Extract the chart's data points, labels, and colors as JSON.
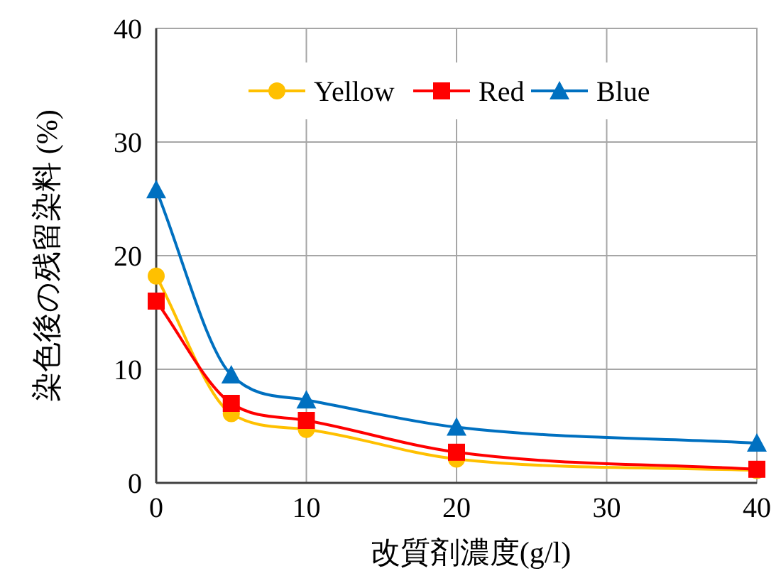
{
  "chart_data": {
    "type": "line",
    "xlabel": "改質剤濃度(g/l)",
    "ylabel": "染色後の残留染料 (%)",
    "x": [
      0,
      5,
      10,
      20,
      40
    ],
    "series": [
      {
        "name": "Yellow",
        "color": "#ffc000",
        "marker": "circle",
        "values": [
          18.2,
          6.1,
          4.7,
          2.1,
          1.1
        ]
      },
      {
        "name": "Red",
        "color": "#ff0000",
        "marker": "square",
        "values": [
          16,
          7,
          5.5,
          2.7,
          1.2
        ]
      },
      {
        "name": "Blue",
        "color": "#0070c0",
        "marker": "triangle",
        "values": [
          25.8,
          9.5,
          7.3,
          4.9,
          3.5
        ]
      }
    ],
    "xlim": [
      0,
      40
    ],
    "xticks": [
      0,
      10,
      20,
      30,
      40
    ],
    "ylim": [
      0,
      40
    ],
    "yticks": [
      0,
      10,
      20,
      30,
      40
    ],
    "grid": true,
    "legend": "top"
  }
}
